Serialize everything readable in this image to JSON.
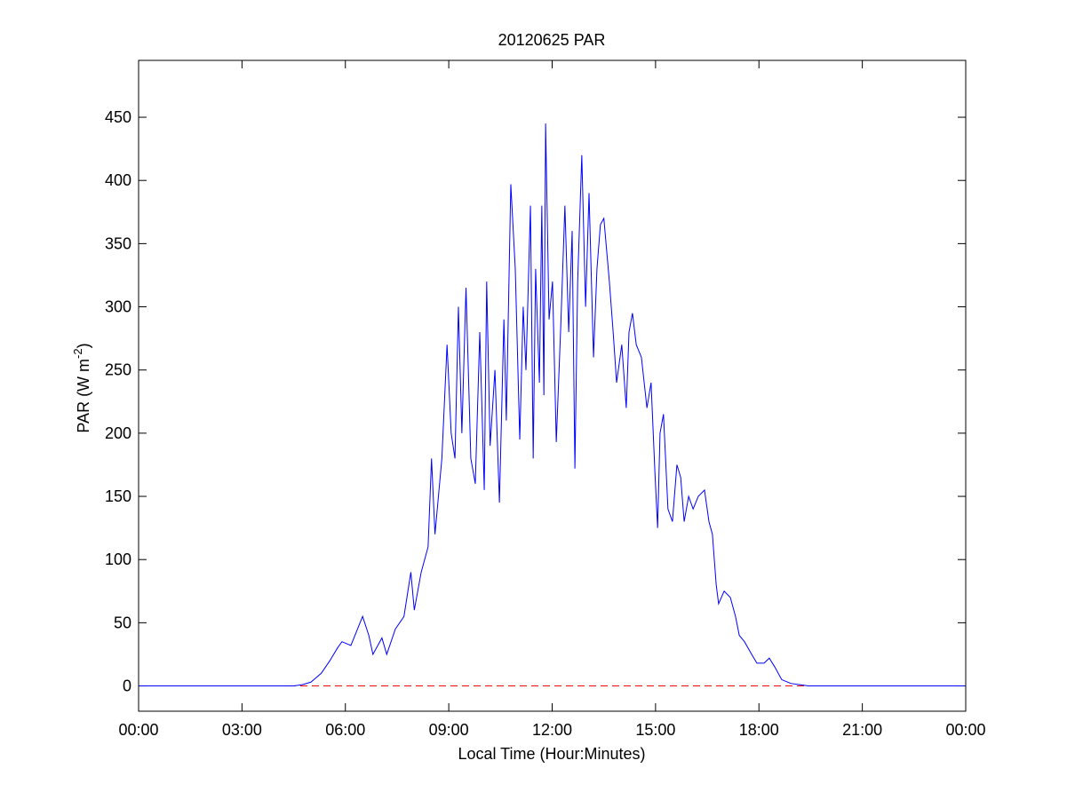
{
  "chart_data": {
    "type": "line",
    "title": "20120625 PAR",
    "xlabel": "Local Time (Hour:Minutes)",
    "ylabel": {
      "text": "PAR (W m",
      "superscript": "-2",
      "suffix": ")"
    },
    "x": [
      0,
      4.5,
      4.75,
      5.0,
      5.3,
      5.55,
      5.77,
      5.9,
      6.16,
      6.5,
      6.68,
      6.8,
      7.06,
      7.2,
      7.45,
      7.7,
      7.9,
      8.0,
      8.2,
      8.4,
      8.5,
      8.6,
      8.8,
      8.95,
      9.07,
      9.18,
      9.28,
      9.38,
      9.5,
      9.64,
      9.77,
      9.9,
      10.03,
      10.1,
      10.2,
      10.34,
      10.47,
      10.6,
      10.67,
      10.8,
      10.93,
      11.06,
      11.16,
      11.24,
      11.37,
      11.45,
      11.52,
      11.63,
      11.7,
      11.76,
      11.81,
      11.91,
      12.01,
      12.12,
      12.25,
      12.37,
      12.48,
      12.58,
      12.66,
      12.74,
      12.86,
      12.97,
      13.07,
      13.2,
      13.3,
      13.4,
      13.5,
      13.66,
      13.77,
      13.87,
      14.02,
      14.15,
      14.23,
      14.33,
      14.44,
      14.59,
      14.75,
      14.87,
      14.98,
      15.06,
      15.13,
      15.23,
      15.36,
      15.49,
      15.62,
      15.73,
      15.83,
      15.96,
      16.09,
      16.24,
      16.42,
      16.55,
      16.65,
      16.76,
      16.83,
      16.99,
      17.17,
      17.32,
      17.43,
      17.58,
      17.79,
      17.94,
      18.15,
      18.3,
      18.46,
      18.66,
      18.92,
      19.18,
      19.44,
      24
    ],
    "series": [
      {
        "color": "#0000ff",
        "values": [
          0,
          0,
          1,
          3,
          10,
          20,
          30,
          35,
          32,
          55,
          40,
          25,
          38,
          25,
          45,
          55,
          90,
          60,
          90,
          110,
          180,
          120,
          180,
          270,
          200,
          180,
          300,
          200,
          315,
          180,
          160,
          280,
          155,
          320,
          190,
          250,
          145,
          290,
          210,
          397,
          330,
          195,
          300,
          250,
          380,
          180,
          330,
          240,
          380,
          230,
          445,
          290,
          320,
          193,
          285,
          380,
          280,
          360,
          172,
          320,
          420,
          300,
          390,
          260,
          330,
          365,
          370,
          320,
          280,
          240,
          270,
          220,
          280,
          295,
          270,
          260,
          220,
          240,
          170,
          125,
          200,
          215,
          140,
          130,
          175,
          165,
          130,
          150,
          140,
          150,
          155,
          130,
          120,
          80,
          65,
          75,
          70,
          55,
          40,
          35,
          25,
          18,
          18,
          22,
          15,
          5,
          2,
          1,
          0,
          0
        ]
      }
    ],
    "zero_line": {
      "value": 0,
      "color": "#ff0000",
      "style": "dashed"
    },
    "xlim": [
      0,
      24
    ],
    "xticks": [
      {
        "value": 0,
        "label": "00:00"
      },
      {
        "value": 3,
        "label": "03:00"
      },
      {
        "value": 6,
        "label": "06:00"
      },
      {
        "value": 9,
        "label": "09:00"
      },
      {
        "value": 12,
        "label": "12:00"
      },
      {
        "value": 15,
        "label": "15:00"
      },
      {
        "value": 18,
        "label": "18:00"
      },
      {
        "value": 21,
        "label": "21:00"
      },
      {
        "value": 24,
        "label": "00:00"
      }
    ],
    "ylim": [
      -20,
      495
    ],
    "yticks": [
      0,
      50,
      100,
      150,
      200,
      250,
      300,
      350,
      400,
      450
    ],
    "grid": false
  }
}
